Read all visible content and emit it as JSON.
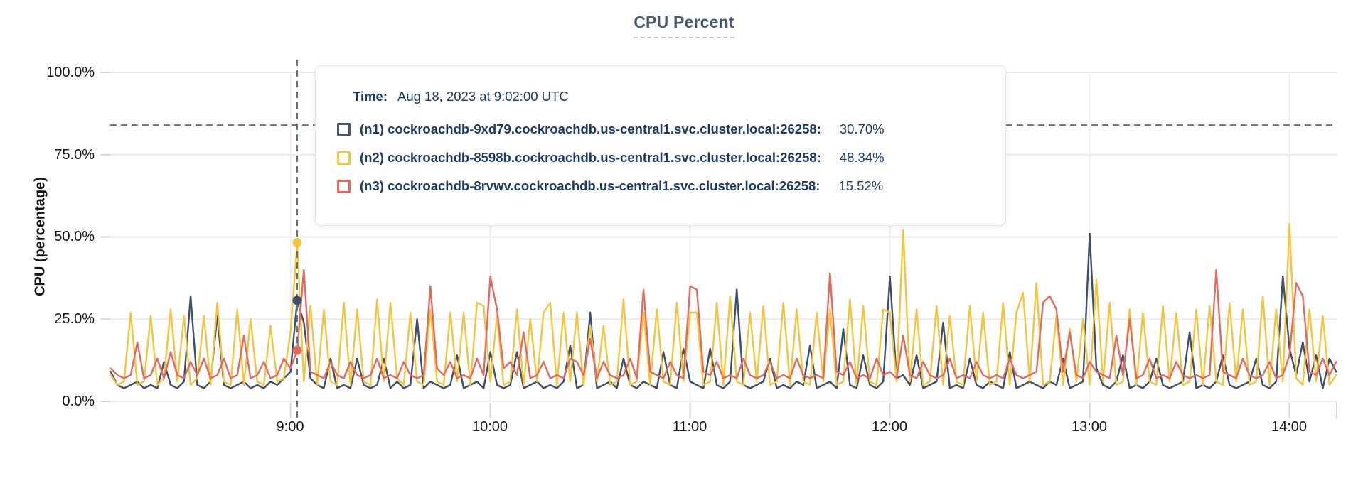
{
  "title": "CPU Percent",
  "tooltip": {
    "time_label": "Time:",
    "time_value": "Aug 18, 2023 at 9:02:00 UTC",
    "rows": [
      {
        "label": "(n1) cockroachdb-9xd79.cockroachdb.us-central1.svc.cluster.local:26258:",
        "value": "30.70%",
        "color": "#475872"
      },
      {
        "label": "(n2) cockroachdb-8598b.cockroachdb.us-central1.svc.cluster.local:26258:",
        "value": "48.34%",
        "color": "#f0c63e"
      },
      {
        "label": "(n3) cockroachdb-8rvwv.cockroachdb.us-central1.svc.cluster.local:26258:",
        "value": "15.52%",
        "color": "#e26a60"
      }
    ]
  },
  "colors": {
    "title": "#475872",
    "grid": "#ebebeb",
    "axis_tick": "#d6d6d6",
    "crosshair": "#5b7186",
    "tooltip_text": "#1b3a66"
  },
  "chart_data": {
    "type": "line",
    "title": "CPU Percent",
    "xlabel": "",
    "ylabel": "CPU (percentage)",
    "ylim": [
      0,
      100
    ],
    "grid": true,
    "legend_position": "tooltip-overlay",
    "yticks": [
      "100.0%",
      "75.0%",
      "50.0%",
      "25.0%",
      "0.0%"
    ],
    "ytick_values": [
      100,
      75,
      50,
      25,
      0
    ],
    "xticks": [
      "9:00",
      "10:00",
      "11:00",
      "12:00",
      "13:00",
      "14:00"
    ],
    "x_start_time": "8:06",
    "x_end_time": "14:14",
    "x_interval_minutes": 2,
    "hover": {
      "index": 28,
      "time": "9:02",
      "crosshair_y_value": 84
    },
    "series": [
      {
        "name": "(n1) cockroachdb-9xd79.cockroachdb.us-central1.svc.cluster.local:26258",
        "color": "#3e4f69",
        "hover_value": 30.7,
        "values": [
          9,
          5,
          4,
          5,
          6,
          4,
          5,
          4,
          12,
          5,
          4,
          6,
          32,
          5,
          4,
          6,
          26,
          5,
          4,
          5,
          6,
          4,
          5,
          4,
          6,
          5,
          7,
          9,
          30.7,
          24,
          7,
          5,
          4,
          13,
          4,
          5,
          4,
          13,
          5,
          4,
          5,
          13,
          4,
          6,
          4,
          5,
          25,
          4,
          6,
          5,
          4,
          5,
          14,
          4,
          5,
          6,
          4,
          15,
          5,
          4,
          5,
          15,
          4,
          5,
          6,
          4,
          5,
          4,
          6,
          17,
          4,
          5,
          27,
          4,
          5,
          6,
          4,
          13,
          5,
          4,
          6,
          5,
          4,
          15,
          5,
          4,
          16,
          6,
          5,
          4,
          16,
          5,
          4,
          6,
          34,
          5,
          4,
          5,
          6,
          13,
          4,
          5,
          4,
          6,
          5,
          17,
          4,
          5,
          6,
          4,
          22,
          5,
          4,
          14,
          5,
          4,
          6,
          38,
          7,
          8,
          5,
          14,
          4,
          5,
          6,
          24,
          4,
          5,
          4,
          13,
          5,
          4,
          6,
          5,
          4,
          15,
          4,
          5,
          6,
          5,
          4,
          6,
          5,
          13,
          4,
          5,
          6,
          51,
          10,
          5,
          4,
          6,
          14,
          4,
          5,
          4,
          6,
          13,
          5,
          4,
          5,
          6,
          21,
          4,
          5,
          4,
          6,
          14,
          5,
          4,
          5,
          6,
          13,
          5,
          4,
          6,
          38,
          16,
          8,
          18,
          6,
          14,
          4,
          13,
          9
        ]
      },
      {
        "name": "(n2) cockroachdb-8598b.cockroachdb.us-central1.svc.cluster.local:26258",
        "color": "#f3c53e",
        "hover_value": 48.34,
        "values": [
          8,
          5,
          6,
          27,
          5,
          6,
          26,
          5,
          7,
          28,
          6,
          26,
          5,
          7,
          26,
          5,
          30,
          6,
          5,
          28,
          5,
          25,
          6,
          5,
          23,
          6,
          7,
          21,
          48.34,
          6,
          29,
          5,
          28,
          6,
          5,
          30,
          5,
          28,
          6,
          5,
          31,
          6,
          30,
          7,
          5,
          27,
          6,
          5,
          28,
          6,
          5,
          27,
          6,
          27,
          5,
          30,
          29,
          6,
          26,
          5,
          6,
          28,
          5,
          25,
          6,
          27,
          30,
          5,
          27,
          6,
          27,
          5,
          23,
          6,
          23,
          5,
          6,
          31,
          5,
          6,
          27,
          5,
          28,
          6,
          5,
          30,
          6,
          27,
          27,
          5,
          6,
          30,
          5,
          32,
          6,
          5,
          27,
          6,
          29,
          5,
          6,
          30,
          5,
          28,
          6,
          5,
          27,
          6,
          28,
          5,
          6,
          31,
          5,
          29,
          6,
          5,
          28,
          27,
          6,
          52,
          6,
          28,
          5,
          6,
          29,
          5,
          26,
          6,
          5,
          29,
          6,
          27,
          5,
          6,
          30,
          5,
          27,
          33,
          6,
          36,
          5,
          6,
          26,
          5,
          22,
          6,
          25,
          5,
          37,
          6,
          30,
          5,
          6,
          28,
          5,
          27,
          6,
          5,
          29,
          6,
          27,
          5,
          6,
          28,
          5,
          29,
          6,
          5,
          30,
          6,
          28,
          5,
          6,
          32,
          5,
          28,
          6,
          54,
          7,
          5,
          28,
          6,
          26,
          5,
          8
        ]
      },
      {
        "name": "(n3) cockroachdb-8rvwv.cockroachdb.us-central1.svc.cluster.local:26258",
        "color": "#e26a60",
        "hover_value": 15.52,
        "values": [
          10,
          8,
          7,
          8,
          18,
          7,
          8,
          13,
          7,
          15,
          8,
          7,
          12,
          8,
          13,
          7,
          8,
          13,
          7,
          8,
          20,
          7,
          8,
          12,
          7,
          8,
          13,
          10,
          15.52,
          40,
          9,
          8,
          7,
          12,
          8,
          7,
          12,
          8,
          7,
          8,
          13,
          7,
          8,
          7,
          12,
          8,
          7,
          8,
          35,
          10,
          8,
          12,
          7,
          8,
          7,
          13,
          8,
          38,
          28,
          10,
          12,
          8,
          21,
          7,
          8,
          12,
          7,
          8,
          7,
          13,
          12,
          8,
          19,
          7,
          12,
          8,
          7,
          8,
          13,
          7,
          34,
          9,
          8,
          7,
          12,
          8,
          7,
          35,
          34,
          9,
          8,
          12,
          7,
          8,
          7,
          13,
          8,
          7,
          8,
          12,
          7,
          8,
          7,
          13,
          8,
          7,
          8,
          7,
          39,
          9,
          8,
          12,
          7,
          8,
          7,
          13,
          8,
          9,
          7,
          20,
          8,
          7,
          12,
          8,
          7,
          8,
          13,
          7,
          8,
          7,
          12,
          8,
          7,
          8,
          7,
          13,
          8,
          7,
          8,
          9,
          30,
          32,
          28,
          9,
          21,
          8,
          7,
          12,
          9,
          8,
          7,
          20,
          8,
          25,
          7,
          8,
          13,
          7,
          8,
          7,
          12,
          8,
          7,
          8,
          7,
          8,
          40,
          9,
          8,
          7,
          13,
          8,
          7,
          8,
          12,
          7,
          8,
          14,
          36,
          32,
          9,
          8,
          13,
          8,
          12
        ]
      }
    ]
  }
}
